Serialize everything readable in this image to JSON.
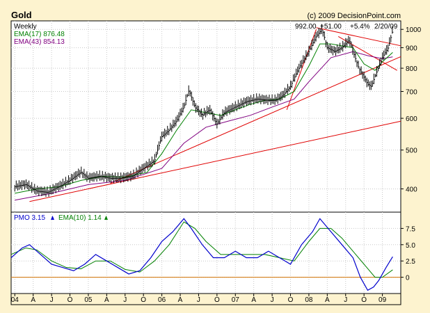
{
  "header": {
    "title": "Gold",
    "copyright": "(c) 2009 DecisionPoint.com"
  },
  "chart_data": [
    {
      "type": "line",
      "panel": "price",
      "period_label": "Weekly",
      "scale": "log",
      "ylim": [
        350,
        1050
      ],
      "yticks": [
        400,
        500,
        600,
        700,
        800,
        900,
        1000
      ],
      "xlim": [
        2003.95,
        2009.25
      ],
      "x_tick_labels": [
        "04",
        "A",
        "J",
        "O",
        "05",
        "A",
        "J",
        "O",
        "06",
        "A",
        "J",
        "O",
        "07",
        "A",
        "J",
        "O",
        "08",
        "A",
        "J",
        "O",
        "09"
      ],
      "x_tick_values": [
        2004.0,
        2004.25,
        2004.5,
        2004.75,
        2005.0,
        2005.25,
        2005.5,
        2005.75,
        2006.0,
        2006.25,
        2006.5,
        2006.75,
        2007.0,
        2007.25,
        2007.5,
        2007.75,
        2008.0,
        2008.25,
        2008.5,
        2008.75,
        2009.0
      ],
      "last_values": {
        "close": "992.00",
        "change": "+51.00",
        "pct_change": "+5.4%",
        "date": "2/20/09"
      },
      "legend": [
        {
          "text": "EMA(17) 876.48",
          "color": "#008000"
        },
        {
          "text": "EMA(43) 854.13",
          "color": "#800080"
        }
      ],
      "colors": {
        "price": "#000000",
        "ema17": "#008000",
        "ema43": "#800080",
        "trendline": "#e00000"
      },
      "price_series": {
        "x": [
          2004.0,
          2004.15,
          2004.3,
          2004.45,
          2004.6,
          2004.75,
          2004.9,
          2005.0,
          2005.15,
          2005.3,
          2005.45,
          2005.6,
          2005.75,
          2005.9,
          2006.0,
          2006.1,
          2006.2,
          2006.3,
          2006.37,
          2006.45,
          2006.55,
          2006.65,
          2006.75,
          2006.85,
          2007.0,
          2007.15,
          2007.3,
          2007.45,
          2007.55,
          2007.65,
          2007.75,
          2007.85,
          2008.0,
          2008.1,
          2008.18,
          2008.25,
          2008.35,
          2008.45,
          2008.55,
          2008.62,
          2008.68,
          2008.75,
          2008.8,
          2008.85,
          2008.92,
          2009.0,
          2009.08,
          2009.14
        ],
        "y": [
          405,
          410,
          395,
          392,
          405,
          420,
          440,
          425,
          430,
          425,
          425,
          430,
          450,
          470,
          540,
          560,
          590,
          640,
          705,
          640,
          610,
          630,
          580,
          620,
          640,
          660,
          670,
          665,
          665,
          685,
          720,
          790,
          880,
          960,
          1000,
          900,
          880,
          900,
          940,
          860,
          800,
          760,
          730,
          720,
          780,
          850,
          900,
          992
        ]
      },
      "ema17": {
        "x": [
          2004.0,
          2004.3,
          2004.6,
          2004.9,
          2005.2,
          2005.5,
          2005.8,
          2006.0,
          2006.2,
          2006.4,
          2006.6,
          2006.8,
          2007.0,
          2007.2,
          2007.4,
          2007.6,
          2007.8,
          2008.0,
          2008.15,
          2008.3,
          2008.45,
          2008.6,
          2008.75,
          2008.9,
          2009.0,
          2009.14
        ],
        "y": [
          390,
          400,
          405,
          420,
          430,
          428,
          440,
          490,
          560,
          630,
          620,
          610,
          630,
          650,
          665,
          670,
          700,
          810,
          920,
          920,
          910,
          900,
          820,
          790,
          830,
          876
        ]
      },
      "ema43": {
        "x": [
          2004.0,
          2004.5,
          2005.0,
          2005.5,
          2006.0,
          2006.3,
          2006.6,
          2006.9,
          2007.2,
          2007.5,
          2007.8,
          2008.0,
          2008.3,
          2008.6,
          2008.8,
          2009.0,
          2009.14
        ],
        "y": [
          375,
          390,
          410,
          420,
          450,
          520,
          570,
          590,
          610,
          640,
          670,
          740,
          850,
          880,
          860,
          845,
          854
        ]
      },
      "trendlines": [
        {
          "x1": 2004.2,
          "y1": 372,
          "x2": 2009.25,
          "y2": 590
        },
        {
          "x1": 2005.3,
          "y1": 413,
          "x2": 2009.25,
          "y2": 855
        },
        {
          "x1": 2007.7,
          "y1": 630,
          "x2": 2008.1,
          "y2": 1000
        },
        {
          "x1": 2008.1,
          "y1": 1010,
          "x2": 2009.25,
          "y2": 910
        },
        {
          "x1": 2008.4,
          "y1": 960,
          "x2": 2009.2,
          "y2": 790
        }
      ]
    },
    {
      "type": "line",
      "panel": "pmo",
      "ylim": [
        -2.5,
        10
      ],
      "yticks": [
        0,
        2.5,
        5.0,
        7.5
      ],
      "ytick_labels": [
        "0",
        "2.5",
        "5.0",
        "7.5"
      ],
      "legend": [
        {
          "text": "PMO 3.15",
          "color": "#0000cc"
        },
        {
          "text": "EMA(10) 1.14",
          "color": "#008000"
        }
      ],
      "colors": {
        "pmo": "#0000cc",
        "ema10": "#008000",
        "zero_line": "#d07000"
      },
      "pmo_series": {
        "x": [
          2003.95,
          2004.1,
          2004.2,
          2004.35,
          2004.5,
          2004.65,
          2004.8,
          2004.95,
          2005.1,
          2005.25,
          2005.4,
          2005.55,
          2005.7,
          2005.85,
          2006.0,
          2006.15,
          2006.3,
          2006.4,
          2006.55,
          2006.7,
          2006.85,
          2007.0,
          2007.15,
          2007.3,
          2007.45,
          2007.6,
          2007.75,
          2007.9,
          2008.05,
          2008.15,
          2008.3,
          2008.45,
          2008.6,
          2008.7,
          2008.8,
          2008.88,
          2008.95,
          2009.05,
          2009.14
        ],
        "y": [
          3.0,
          4.5,
          5.0,
          3.5,
          2.0,
          1.5,
          1.0,
          2.0,
          3.5,
          2.5,
          1.5,
          0.5,
          1.0,
          3.0,
          5.5,
          7.0,
          9.0,
          7.5,
          5.0,
          3.0,
          3.0,
          4.0,
          3.0,
          3.0,
          4.0,
          3.0,
          2.0,
          5.0,
          7.0,
          9.0,
          7.0,
          5.0,
          3.0,
          0.0,
          -2.0,
          -1.5,
          -0.5,
          1.5,
          3.15
        ]
      },
      "ema10_series": {
        "x": [
          2003.95,
          2004.15,
          2004.3,
          2004.5,
          2004.7,
          2004.9,
          2005.1,
          2005.3,
          2005.5,
          2005.7,
          2005.9,
          2006.1,
          2006.3,
          2006.45,
          2006.6,
          2006.8,
          2007.0,
          2007.2,
          2007.4,
          2007.6,
          2007.8,
          2008.0,
          2008.15,
          2008.3,
          2008.45,
          2008.6,
          2008.75,
          2008.9,
          2009.0,
          2009.14
        ],
        "y": [
          3.5,
          4.5,
          4.2,
          2.5,
          1.5,
          1.3,
          2.5,
          2.5,
          1.2,
          0.8,
          2.5,
          5.0,
          8.5,
          7.5,
          5.5,
          3.5,
          3.5,
          3.5,
          3.5,
          3.0,
          2.5,
          5.5,
          7.5,
          7.5,
          6.0,
          4.0,
          2.0,
          0.0,
          0.0,
          1.14
        ]
      }
    }
  ]
}
